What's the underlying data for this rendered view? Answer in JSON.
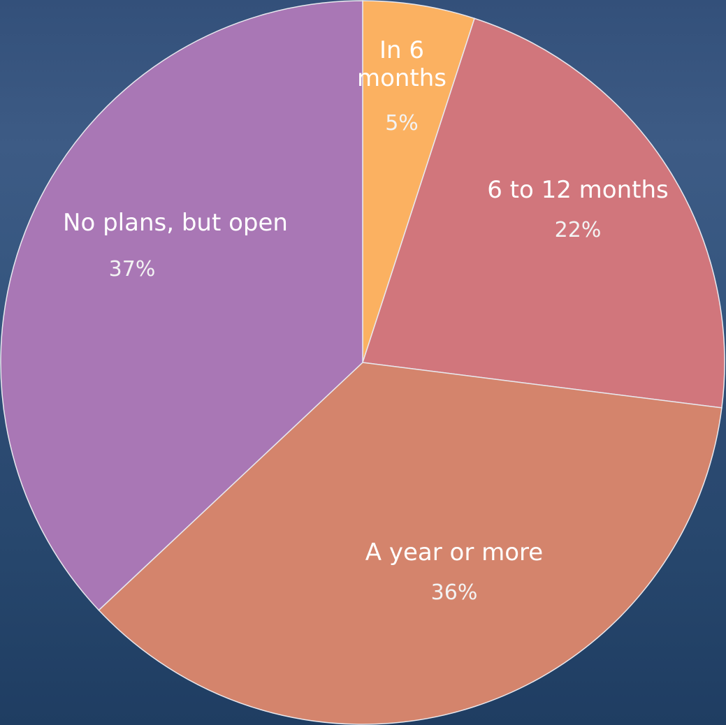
{
  "chart_data": {
    "type": "pie",
    "categories": [
      "In 6 months",
      "6 to 12 months",
      "A year or more",
      "No plans, but open"
    ],
    "values": [
      5,
      22,
      36,
      37
    ],
    "labels": [
      {
        "lines": [
          "In 6",
          "months"
        ],
        "percent": "5%"
      },
      {
        "lines": [
          "6 to 12 months"
        ],
        "percent": "22%"
      },
      {
        "lines": [
          "A year or more"
        ],
        "percent": "36%"
      },
      {
        "lines": [
          "No plans, but open"
        ],
        "percent": "37%"
      }
    ],
    "colors": [
      "#fbb161",
      "#d1767c",
      "#d4846c",
      "#a977b5"
    ],
    "start_angle_deg": 0,
    "direction": "clockwise"
  }
}
